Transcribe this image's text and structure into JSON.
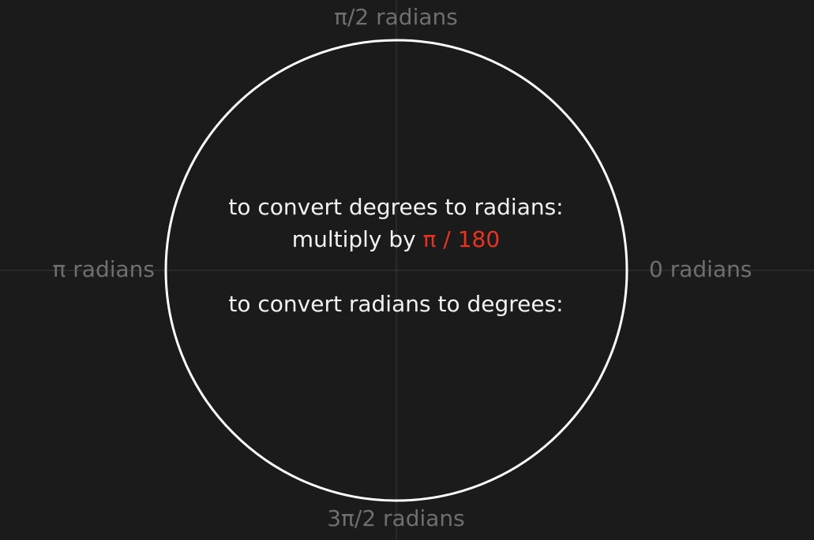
{
  "axis_labels": {
    "top": "π/2 radians",
    "bottom": "3π/2 radians",
    "left": "π radians",
    "right": "0 radians"
  },
  "conversion": {
    "deg_to_rad_heading": "to convert degrees to radians:",
    "deg_to_rad_prefix": "multiply by",
    "deg_to_rad_factor": "π / 180",
    "rad_to_deg_heading": "to convert radians to degrees:"
  },
  "colors": {
    "background": "#1b1b1c",
    "circle": "#ffffff",
    "axis": "#3a3a3a",
    "label": "#6f6f6f",
    "text": "#f2f2f2",
    "accent": "#e8331e"
  }
}
